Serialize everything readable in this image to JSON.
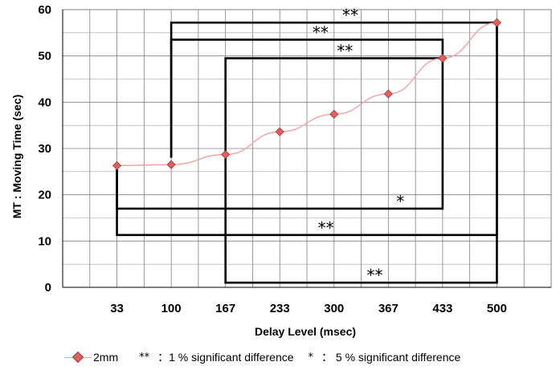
{
  "chart_data": {
    "type": "line",
    "categories": [
      "33",
      "100",
      "167",
      "233",
      "300",
      "367",
      "433",
      "500"
    ],
    "series": [
      {
        "name": "2mm",
        "values": [
          26.3,
          26.5,
          28.7,
          33.6,
          37.4,
          41.8,
          49.5,
          57.2
        ],
        "color": "#e06060",
        "line_color": "#f4a0a0"
      }
    ],
    "ylim": [
      0,
      60
    ],
    "yticks": [
      0,
      10,
      20,
      30,
      40,
      50,
      60
    ],
    "ylabel": "MT : Moving Time (sec)",
    "xlabel": "Delay Level (msec)",
    "grid": true,
    "significance_brackets": [
      {
        "from": "100",
        "to": "500",
        "from_top": 28,
        "to_top": 57.2,
        "level": 57.2,
        "mark": "**"
      },
      {
        "from": "100",
        "to": "433",
        "from_top": 28,
        "to_top": 49.5,
        "level": 53.5,
        "mark": "**"
      },
      {
        "from": "167",
        "to": "433",
        "from_top": 28,
        "to_top": 49.5,
        "level": 49.5,
        "mark": "**"
      },
      {
        "from": "33",
        "to": "433",
        "from_top": 25.5,
        "to_top": 49.5,
        "level": 17,
        "mark": "*"
      },
      {
        "from": "33",
        "to": "500",
        "from_top": 25.5,
        "to_top": 57.2,
        "level": 11.3,
        "mark": "**"
      },
      {
        "from": "167",
        "to": "500",
        "from_top": 28,
        "to_top": 57.2,
        "level": 1,
        "mark": "**"
      }
    ]
  },
  "legend": {
    "series_label": "2mm",
    "double_star": "**",
    "double_star_text": "：1 % significant difference",
    "single_star": "*",
    "single_star_text": "： 5 % significant difference"
  }
}
